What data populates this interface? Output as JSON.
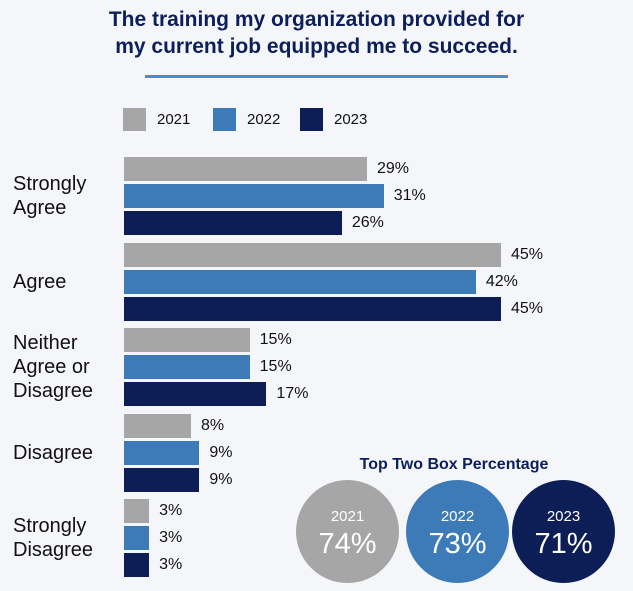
{
  "title_line1": "The training my organization provided for",
  "title_line2": "my current job equipped me to succeed.",
  "chart_data": {
    "type": "bar",
    "orientation": "horizontal",
    "title": "The training my organization provided for my current job equipped me to succeed.",
    "categories": [
      "Strongly Agree",
      "Agree",
      "Neither Agree or Disagree",
      "Disagree",
      "Strongly Disagree"
    ],
    "category_label_lines": [
      [
        "Strongly",
        "Agree"
      ],
      [
        "Agree"
      ],
      [
        "Neither",
        "Agree or",
        "Disagree"
      ],
      [
        "Disagree"
      ],
      [
        "Strongly",
        "Disagree"
      ]
    ],
    "series": [
      {
        "name": "2021",
        "color": "#a6a6a6",
        "values": [
          29,
          45,
          15,
          8,
          3
        ]
      },
      {
        "name": "2022",
        "color": "#3d7bb8",
        "values": [
          31,
          42,
          15,
          9,
          3
        ]
      },
      {
        "name": "2023",
        "color": "#0c1e55",
        "values": [
          26,
          45,
          17,
          9,
          3
        ]
      }
    ],
    "value_suffix": "%",
    "xlim": [
      0,
      45
    ],
    "legend_position": "top",
    "grid": false
  },
  "top_two_box": {
    "title": "Top Two Box Percentage",
    "items": [
      {
        "year": "2021",
        "value": "74%",
        "color": "#a6a6a6"
      },
      {
        "year": "2022",
        "value": "73%",
        "color": "#3d7bb8"
      },
      {
        "year": "2023",
        "value": "71%",
        "color": "#0c1e55"
      }
    ]
  }
}
